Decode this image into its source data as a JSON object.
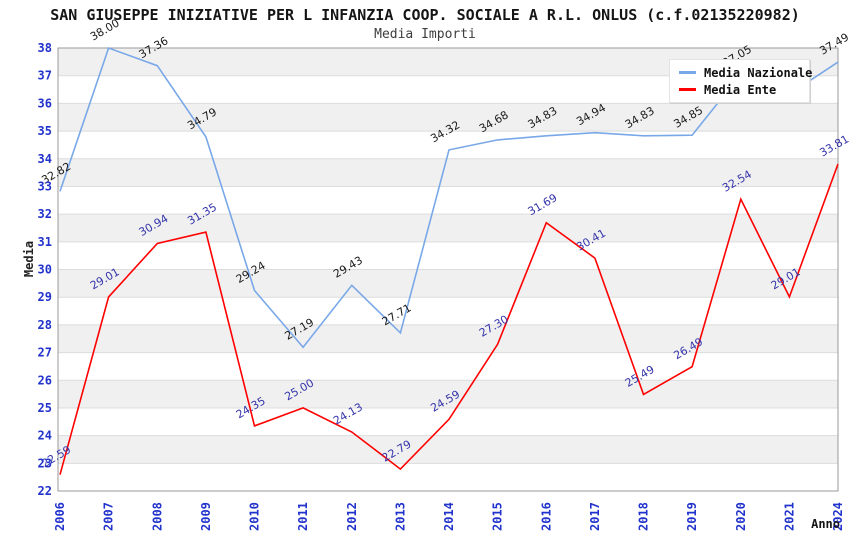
{
  "chart_data": {
    "type": "line",
    "title": "SAN GIUSEPPE INIZIATIVE PER L INFANZIA COOP. SOCIALE A R.L. ONLUS (c.f.02135220982)",
    "subtitle": "Media Importi",
    "xlabel": "Anno",
    "ylabel": "Media",
    "ylim": [
      22,
      38
    ],
    "y_tick_step": 1,
    "grid": "horizontal-bands",
    "legend_position": "top-right",
    "categories": [
      "2006",
      "2007",
      "2008",
      "2009",
      "2010",
      "2011",
      "2012",
      "2013",
      "2014",
      "2015",
      "2016",
      "2017",
      "2018",
      "2019",
      "2020",
      "2021",
      "2024"
    ],
    "series": [
      {
        "name": "Media Nazionale",
        "color": "#79a8e8",
        "label_color": "#1a1a1a",
        "values": [
          32.82,
          38.0,
          37.36,
          34.79,
          29.24,
          27.19,
          29.43,
          27.71,
          34.32,
          34.68,
          34.83,
          34.94,
          34.83,
          34.85,
          37.05,
          36.33,
          37.49
        ],
        "labels": [
          "32.82",
          "38.00",
          "37.36",
          "34.79",
          "29.24",
          "27.19",
          "29.43",
          "27.71",
          "34.32",
          "34.68",
          "34.83",
          "34.94",
          "34.83",
          "34.85",
          "37.05",
          "",
          "37.49"
        ]
      },
      {
        "name": "Media Ente",
        "color": "#ff0000",
        "label_color": "#3333aa",
        "values": [
          22.59,
          29.01,
          30.94,
          31.35,
          24.35,
          25.0,
          24.13,
          22.79,
          24.59,
          27.3,
          31.69,
          30.41,
          25.49,
          26.49,
          32.54,
          29.01,
          33.81
        ],
        "labels": [
          "22.59",
          "29.01",
          "30.94",
          "31.35",
          "24.35",
          "25.00",
          "24.13",
          "22.79",
          "24.59",
          "27.30",
          "31.69",
          "30.41",
          "25.49",
          "26.49",
          "32.54",
          "29.01",
          "33.81"
        ]
      }
    ],
    "colors": {
      "band": "#f0f0f0",
      "grid_line": "#dcdcdc",
      "plot_border": "#9a9a9a",
      "tick_label": "#2233cc",
      "title_text": "#151515",
      "subtitle_text": "#3d3d3d",
      "legend_bg": "#ffffff"
    }
  }
}
